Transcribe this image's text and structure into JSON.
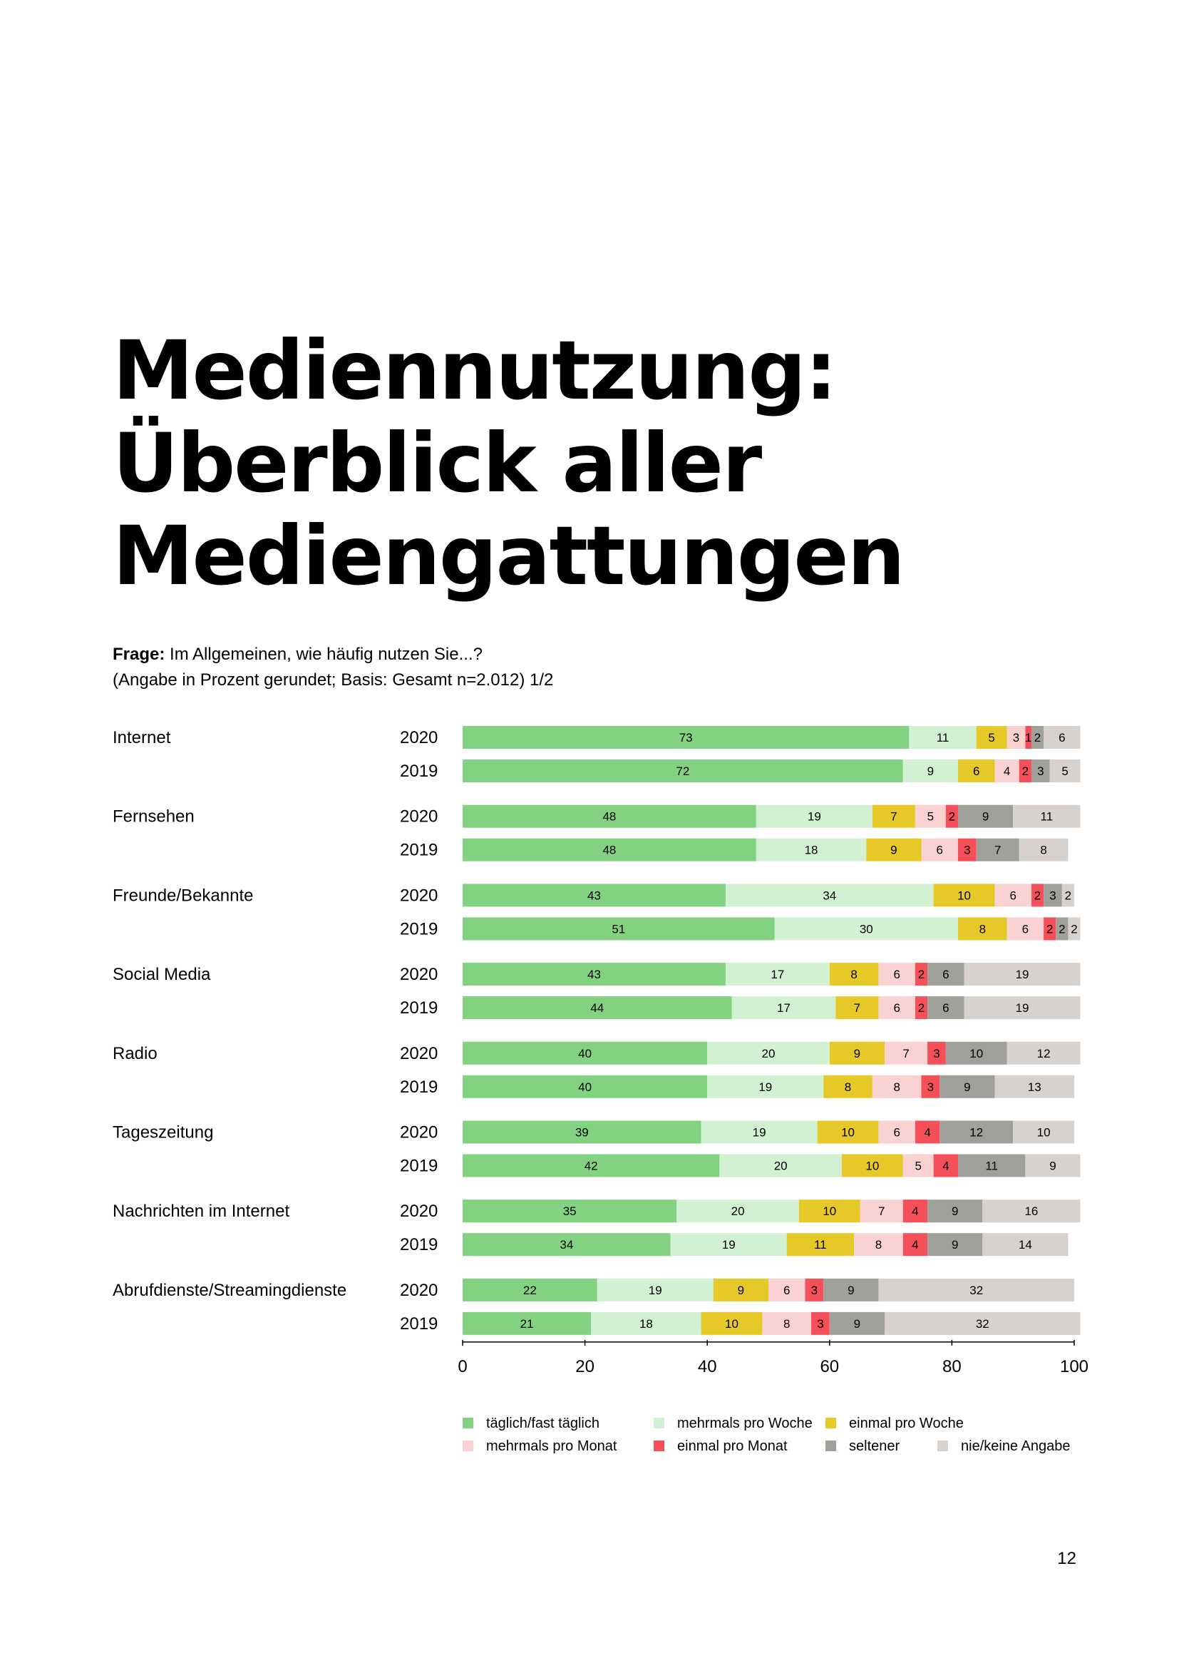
{
  "title_lines": [
    "Mediennutzung:",
    "Überblick aller",
    "Mediengattungen"
  ],
  "question": {
    "label": "Frage:",
    "text": "Im Allgemeinen, wie häufig nutzen Sie...?",
    "note": "(Angabe in Prozent gerundet; Basis: Gesamt n=2.012) 1/2"
  },
  "page_number": "12",
  "chart_data": {
    "type": "bar",
    "orientation": "horizontal",
    "stacked": true,
    "xlim": [
      0,
      100
    ],
    "xticks": [
      "0",
      "20",
      "40",
      "60",
      "80",
      "100"
    ],
    "legend_position": "bottom",
    "series": [
      {
        "name": "täglich/fast täglich",
        "color": "#82d282"
      },
      {
        "name": "mehrmals pro Woche",
        "color": "#d2f0d2"
      },
      {
        "name": "einmal pro Woche",
        "color": "#e6c828"
      },
      {
        "name": "mehrmals pro Monat",
        "color": "#fad2d2"
      },
      {
        "name": "einmal pro Monat",
        "color": "#f5505a"
      },
      {
        "name": "seltener",
        "color": "#a0a09b"
      },
      {
        "name": "nie/keine Angabe",
        "color": "#d7d2cd"
      }
    ],
    "categories": [
      {
        "label": "Internet",
        "rows": [
          {
            "year": "2020",
            "values": [
              73,
              11,
              5,
              3,
              1,
              2,
              6
            ]
          },
          {
            "year": "2019",
            "values": [
              72,
              9,
              6,
              4,
              2,
              3,
              5
            ]
          }
        ]
      },
      {
        "label": "Fernsehen",
        "rows": [
          {
            "year": "2020",
            "values": [
              48,
              19,
              7,
              5,
              2,
              9,
              11
            ]
          },
          {
            "year": "2019",
            "values": [
              48,
              18,
              9,
              6,
              3,
              7,
              8
            ]
          }
        ]
      },
      {
        "label": "Freunde/Bekannte",
        "rows": [
          {
            "year": "2020",
            "values": [
              43,
              34,
              10,
              6,
              2,
              3,
              2
            ]
          },
          {
            "year": "2019",
            "values": [
              51,
              30,
              8,
              6,
              2,
              2,
              2
            ]
          }
        ]
      },
      {
        "label": "Social Media",
        "rows": [
          {
            "year": "2020",
            "values": [
              43,
              17,
              8,
              6,
              2,
              6,
              19
            ]
          },
          {
            "year": "2019",
            "values": [
              44,
              17,
              7,
              6,
              2,
              6,
              19
            ]
          }
        ]
      },
      {
        "label": "Radio",
        "rows": [
          {
            "year": "2020",
            "values": [
              40,
              20,
              9,
              7,
              3,
              10,
              12
            ]
          },
          {
            "year": "2019",
            "values": [
              40,
              19,
              8,
              8,
              3,
              9,
              13
            ]
          }
        ]
      },
      {
        "label": "Tageszeitung",
        "rows": [
          {
            "year": "2020",
            "values": [
              39,
              19,
              10,
              6,
              4,
              12,
              10
            ]
          },
          {
            "year": "2019",
            "values": [
              42,
              20,
              10,
              5,
              4,
              11,
              9
            ]
          }
        ]
      },
      {
        "label": "Nachrichten im Internet",
        "rows": [
          {
            "year": "2020",
            "values": [
              35,
              20,
              10,
              7,
              4,
              9,
              16
            ]
          },
          {
            "year": "2019",
            "values": [
              34,
              19,
              11,
              8,
              4,
              9,
              14
            ]
          }
        ]
      },
      {
        "label": "Abrufdienste/Streamingdienste",
        "rows": [
          {
            "year": "2020",
            "values": [
              22,
              19,
              9,
              6,
              3,
              9,
              32
            ]
          },
          {
            "year": "2019",
            "values": [
              21,
              18,
              10,
              8,
              3,
              9,
              32
            ]
          }
        ]
      }
    ]
  }
}
